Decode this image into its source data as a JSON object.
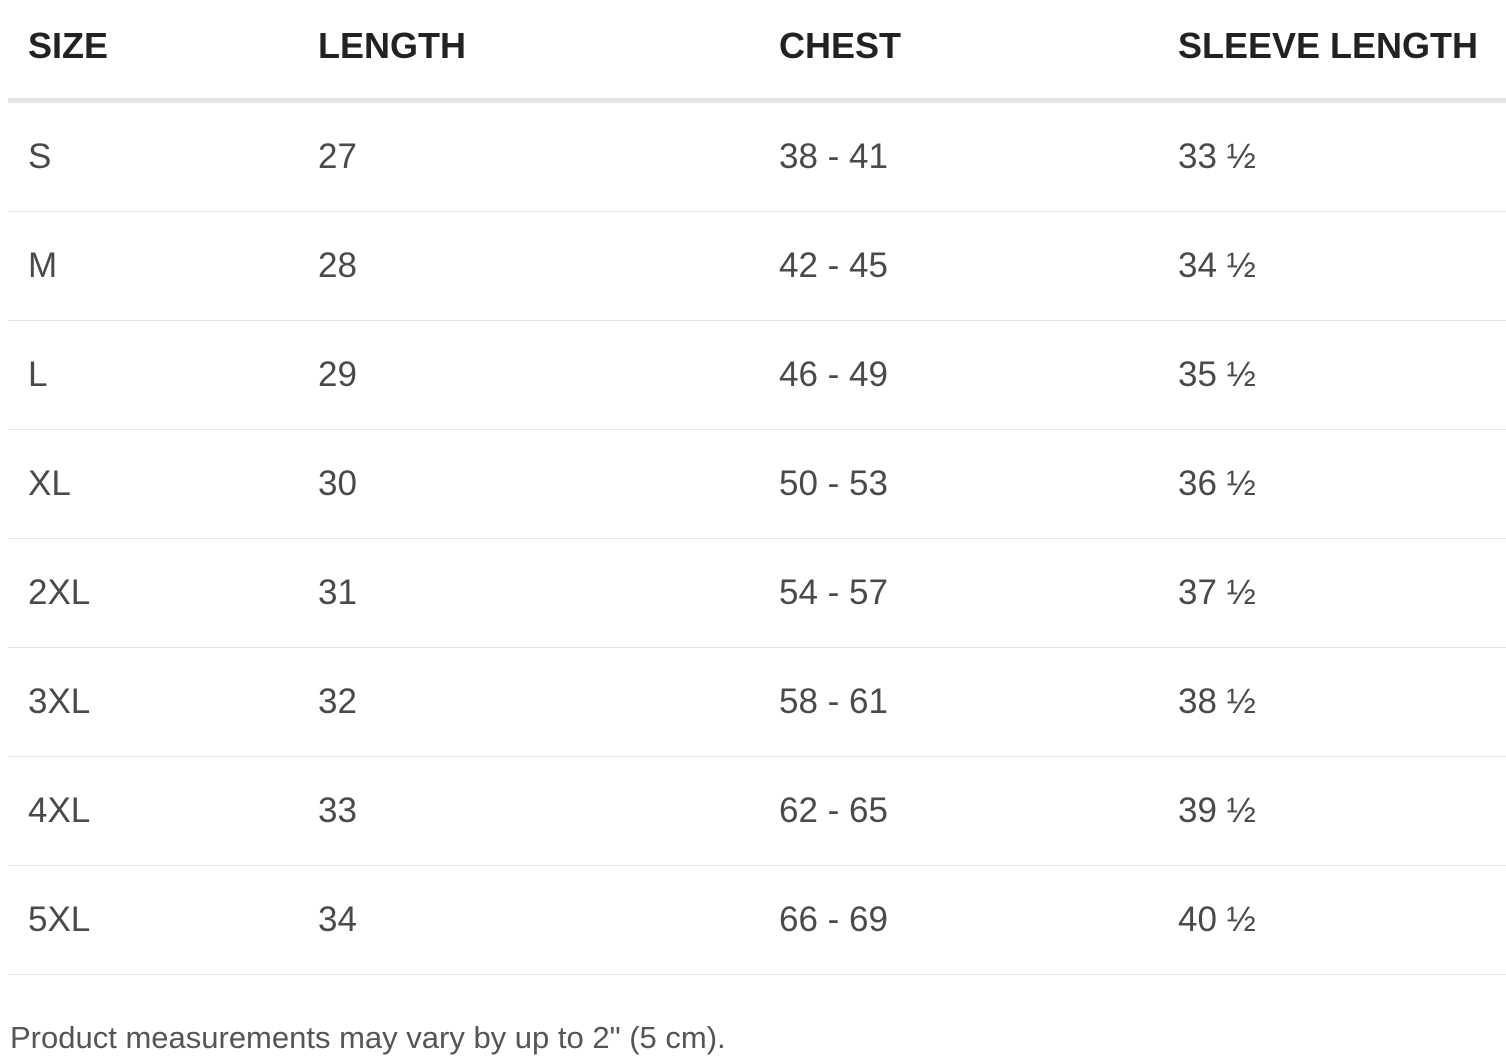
{
  "table": {
    "headers": [
      "SIZE",
      "LENGTH",
      "CHEST",
      "SLEEVE LENGTH"
    ],
    "rows": [
      [
        "S",
        "27",
        "38 - 41",
        "33 ½"
      ],
      [
        "M",
        "28",
        "42 - 45",
        "34 ½"
      ],
      [
        "L",
        "29",
        "46 - 49",
        "35 ½"
      ],
      [
        "XL",
        "30",
        "50 - 53",
        "36 ½"
      ],
      [
        "2XL",
        "31",
        "54 - 57",
        "37 ½"
      ],
      [
        "3XL",
        "32",
        "58 - 61",
        "38 ½"
      ],
      [
        "4XL",
        "33",
        "62 - 65",
        "39 ½"
      ],
      [
        "5XL",
        "34",
        "66 - 69",
        "40 ½"
      ]
    ]
  },
  "note": "Product measurements may vary by up to 2\" (5 cm)."
}
